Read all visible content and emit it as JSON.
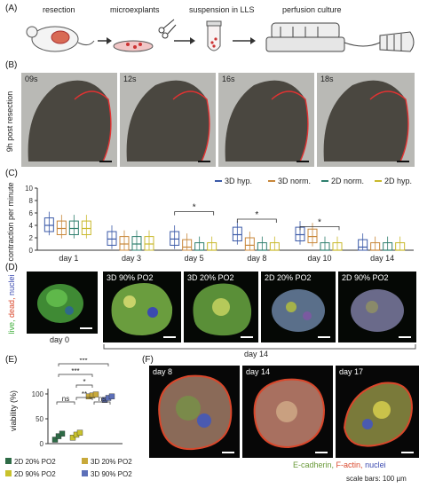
{
  "panelA": {
    "letter": "(A)",
    "steps": [
      "resection",
      "microexplants",
      "suspension in LLS",
      "perfusion culture"
    ]
  },
  "panelB": {
    "letter": "(B)",
    "ylabel": "9h post resection",
    "frames": [
      "09s",
      "12s",
      "16s",
      "18s"
    ]
  },
  "panelC": {
    "letter": "(C)",
    "ylabel": "contraction per minute",
    "legend": [
      {
        "name": "3D hyp.",
        "color": "#3b5aa8"
      },
      {
        "name": "3D norm.",
        "color": "#c8873a"
      },
      {
        "name": "2D norm.",
        "color": "#2f7f6e"
      },
      {
        "name": "2D hyp.",
        "color": "#c9b92c"
      }
    ],
    "yticks": [
      "0",
      "2",
      "4",
      "6",
      "8",
      "10"
    ],
    "xticks": [
      "day 1",
      "day 3",
      "day 5",
      "day 8",
      "day 10",
      "day 14"
    ],
    "sig": "*"
  },
  "panelD": {
    "letter": "(D)",
    "side_label": {
      "live": "live,",
      "dead": "dead,",
      "nuclei": "nuclei"
    },
    "tiles": [
      "3D 90% PO2",
      "3D 20% PO2",
      "2D 20% PO2",
      "2D 90% PO2"
    ],
    "day0": "day 0",
    "day14": "day 14"
  },
  "panelE": {
    "letter": "(E)",
    "ylabel": "viability (%)",
    "yticks": [
      "0",
      "50",
      "100"
    ],
    "sig": [
      "***",
      "***",
      "*",
      "**",
      "ns",
      "ns"
    ],
    "legend": [
      "2D 20% PO2",
      "3D 20% PO2",
      "2D 90% PO2",
      "3D 90% PO2"
    ]
  },
  "panelF": {
    "letter": "(F)",
    "days": [
      "day 8",
      "day 14",
      "day 17"
    ],
    "stain": {
      "ecad": "E-cadherin,",
      "factin": "F-actin,",
      "nuclei": "nuclei"
    },
    "scale": "scale bars: 100 µm"
  },
  "colors": {
    "live": "#3fae3a",
    "dead": "#d9472b",
    "nuclei": "#3b4ab0",
    "ecad": "#6a9a3a",
    "factin": "#d9472b",
    "nuc": "#3b4ab0",
    "g2d20": "#2e6b46",
    "g2d90": "#c9c22c",
    "g3d20": "#c8a93a",
    "g3d90": "#5c6fb8"
  },
  "chart_data": [
    {
      "type": "box",
      "title": "",
      "ylabel": "contraction per minute",
      "ylim": [
        0,
        10
      ],
      "categories": [
        "day 1",
        "day 3",
        "day 5",
        "day 8",
        "day 10",
        "day 14"
      ],
      "series": [
        {
          "name": "3D hyp.",
          "medians": [
            4,
            1.8,
            1.8,
            2.5,
            2.5,
            0.5
          ]
        },
        {
          "name": "3D norm.",
          "medians": [
            3.5,
            1,
            0.5,
            0.8,
            2.2,
            0
          ]
        },
        {
          "name": "2D norm.",
          "medians": [
            3.5,
            1,
            0,
            0,
            0,
            0
          ]
        },
        {
          "name": "2D hyp.",
          "medians": [
            3.5,
            1,
            0,
            0,
            0,
            0
          ]
        }
      ]
    },
    {
      "type": "scatter",
      "title": "",
      "ylabel": "viability (%)",
      "ylim": [
        0,
        100
      ],
      "categories": [
        "2D 20% PO2",
        "2D 90% PO2",
        "3D 20% PO2",
        "3D 90% PO2"
      ],
      "values": [
        [
          8,
          15,
          20
        ],
        [
          12,
          18,
          22
        ],
        [
          95,
          97,
          99
        ],
        [
          88,
          92,
          95
        ]
      ]
    }
  ]
}
